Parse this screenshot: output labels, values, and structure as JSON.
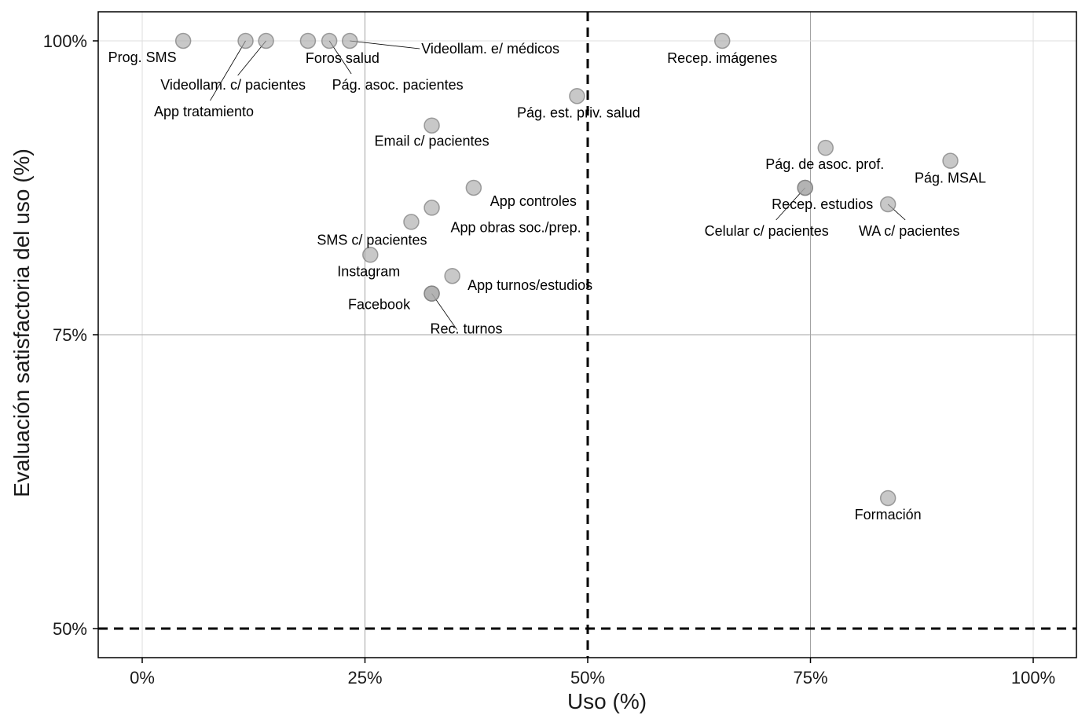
{
  "chart_data": {
    "type": "scatter",
    "title": "",
    "xlabel": "Uso (%)",
    "ylabel": "Evaluación satisfactoria del uso (%)",
    "xlim": [
      -5,
      105
    ],
    "ylim": [
      45.2,
      102.5
    ],
    "x_ticks": [
      0,
      25,
      50,
      75,
      100
    ],
    "x_tick_labels": [
      "0%",
      "25%",
      "50%",
      "75%",
      "100%"
    ],
    "y_ticks": [
      50,
      75,
      100
    ],
    "y_tick_labels": [
      "50%",
      "75%",
      "100%"
    ],
    "grid": true,
    "reference_lines": [
      {
        "axis": "x",
        "value": 50,
        "style": "dashed"
      },
      {
        "axis": "y",
        "value": 50,
        "style": "dashed"
      }
    ],
    "marker_color": "#a6a6a6",
    "marker_edge_color": "#7a7a7a",
    "points": [
      {
        "label": "Prog. SMS",
        "x": 4.6,
        "y": 100
      },
      {
        "label": "App tratamiento",
        "x": 11.6,
        "y": 100
      },
      {
        "label": "Videollam. c/ pacientes",
        "x": 13.9,
        "y": 100
      },
      {
        "label": "Foros salud",
        "x": 18.6,
        "y": 100
      },
      {
        "label": "Pág. asoc. pacientes",
        "x": 21.0,
        "y": 100
      },
      {
        "label": "Videollam. e/ médicos",
        "x": 23.3,
        "y": 100
      },
      {
        "label": "Recep. imágenes",
        "x": 65.1,
        "y": 100
      },
      {
        "label": "Pág. est. priv. salud",
        "x": 48.8,
        "y": 95.3
      },
      {
        "label": "Email c/ pacientes",
        "x": 32.5,
        "y": 92.8
      },
      {
        "label": "App controles",
        "x": 37.2,
        "y": 87.5
      },
      {
        "label": "App obras soc./prep.",
        "x": 32.5,
        "y": 85.8
      },
      {
        "label": "SMS c/ pacientes",
        "x": 30.2,
        "y": 84.6
      },
      {
        "label": "Instagram",
        "x": 25.6,
        "y": 81.8
      },
      {
        "label": "App turnos/estudios",
        "x": 34.8,
        "y": 80.0
      },
      {
        "label": "Facebook",
        "x": 32.5,
        "y": 78.5
      },
      {
        "label": "Rec. turnos",
        "x": 32.5,
        "y": 78.5
      },
      {
        "label": "Pág. de asoc. prof.",
        "x": 76.7,
        "y": 90.9
      },
      {
        "label": "Pág. MSAL",
        "x": 90.7,
        "y": 89.8
      },
      {
        "label": "Recep. estudios",
        "x": 74.4,
        "y": 87.5
      },
      {
        "label": "Celular c/ pacientes",
        "x": 74.4,
        "y": 87.5
      },
      {
        "label": "WA c/ pacientes",
        "x": 83.7,
        "y": 86.1
      },
      {
        "label": "Formación",
        "x": 83.7,
        "y": 61.1
      }
    ]
  }
}
